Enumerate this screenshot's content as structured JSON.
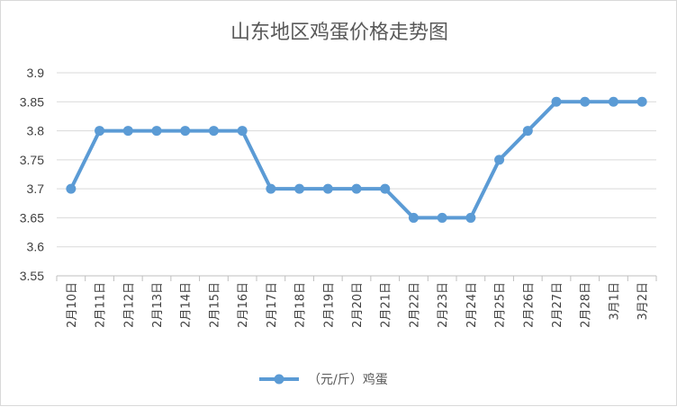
{
  "chart_data": {
    "type": "line",
    "title": "山东地区鸡蛋价格走势图",
    "xlabel": "",
    "ylabel": "",
    "categories": [
      "2月10日",
      "2月11日",
      "2月12日",
      "2月13日",
      "2月14日",
      "2月15日",
      "2月16日",
      "2月17日",
      "2月18日",
      "2月19日",
      "2月20日",
      "2月21日",
      "2月22日",
      "2月23日",
      "2月24日",
      "2月25日",
      "2月26日",
      "2月27日",
      "2月28日",
      "3月1日",
      "3月2日"
    ],
    "series": [
      {
        "name": "（元/斤）鸡蛋",
        "values": [
          3.7,
          3.8,
          3.8,
          3.8,
          3.8,
          3.8,
          3.8,
          3.7,
          3.7,
          3.7,
          3.7,
          3.7,
          3.65,
          3.65,
          3.65,
          3.75,
          3.8,
          3.85,
          3.85,
          3.85,
          3.85
        ]
      }
    ],
    "ylim": [
      3.55,
      3.9
    ],
    "yticks": [
      "3.9",
      "3.85",
      "3.8",
      "3.75",
      "3.7",
      "3.65",
      "3.6",
      "3.55"
    ],
    "grid": true,
    "legend": "bottom",
    "line_color": "#5b9bd5"
  }
}
